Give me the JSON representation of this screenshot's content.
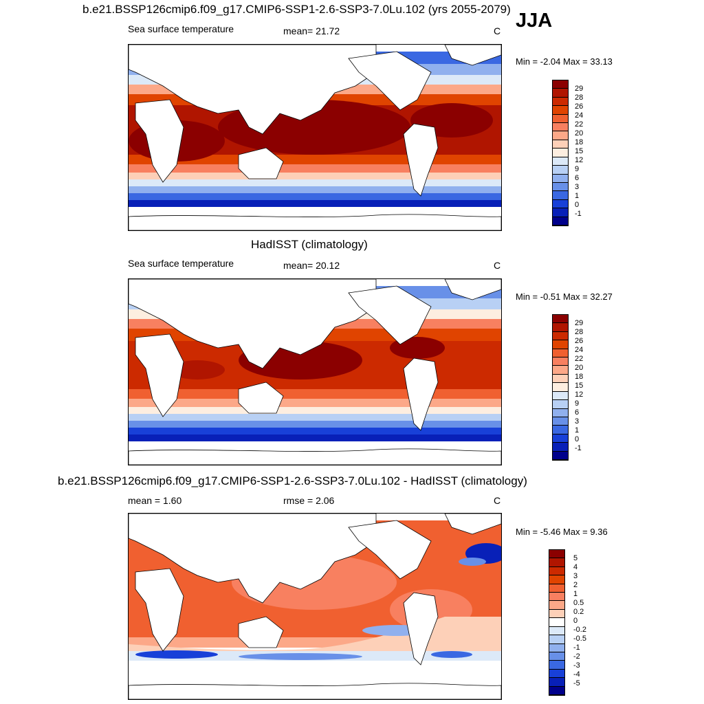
{
  "season": "JJA",
  "panels": [
    {
      "title": "b.e21.BSSP126cmip6.f09_g17.CMIP6-SSP1-2.6-SSP3-7.0Lu.102 (yrs 2055-2079)",
      "left_label": "Sea surface temperature",
      "center_label": "mean=  21.72",
      "units": "C",
      "minmax": "Min =  -2.04 Max =  33.13",
      "colorbar_labels": [
        "29",
        "28",
        "26",
        "24",
        "22",
        "20",
        "18",
        "15",
        "12",
        "9",
        "6",
        "3",
        "1",
        "0",
        "-1"
      ],
      "colors": [
        "#8b0000",
        "#b01500",
        "#cc2a00",
        "#e04400",
        "#f06030",
        "#f88060",
        "#fca888",
        "#fdd0b8",
        "#fdeee0",
        "#dce9f8",
        "#b8d0f4",
        "#90b0ee",
        "#6890e8",
        "#3a68e2",
        "#1840d8",
        "#0820b8",
        "#00008b"
      ]
    },
    {
      "title": "HadISST (climatology)",
      "left_label": "Sea surface temperature",
      "center_label": "mean=  20.12",
      "units": "C",
      "minmax": "Min =  -0.51 Max =  32.27",
      "colorbar_labels": [
        "29",
        "28",
        "26",
        "24",
        "22",
        "20",
        "18",
        "15",
        "12",
        "9",
        "6",
        "3",
        "1",
        "0",
        "-1"
      ],
      "colors": [
        "#8b0000",
        "#b01500",
        "#cc2a00",
        "#e04400",
        "#f06030",
        "#f88060",
        "#fca888",
        "#fdd0b8",
        "#fdeee0",
        "#dce9f8",
        "#b8d0f4",
        "#90b0ee",
        "#6890e8",
        "#3a68e2",
        "#1840d8",
        "#0820b8",
        "#00008b"
      ]
    },
    {
      "title": "b.e21.BSSP126cmip6.f09_g17.CMIP6-SSP1-2.6-SSP3-7.0Lu.102 - HadISST (climatology)",
      "left_label": "mean =   1.60",
      "center_label": "rmse =   2.06",
      "units": "C",
      "minmax": "Min =  -5.46 Max =   9.36",
      "colorbar_labels": [
        "5",
        "4",
        "3",
        "2",
        "1",
        "0.5",
        "0.2",
        "0",
        "-0.2",
        "-0.5",
        "-1",
        "-2",
        "-3",
        "-4",
        "-5"
      ],
      "colors": [
        "#8b0000",
        "#b01500",
        "#cc2a00",
        "#e04400",
        "#f06030",
        "#f88060",
        "#fca888",
        "#fdd0b8",
        "#ffffff",
        "#dce9f8",
        "#b8d0f4",
        "#90b0ee",
        "#6890e8",
        "#3a68e2",
        "#1840d8",
        "#0820b8",
        "#00008b"
      ]
    }
  ]
}
